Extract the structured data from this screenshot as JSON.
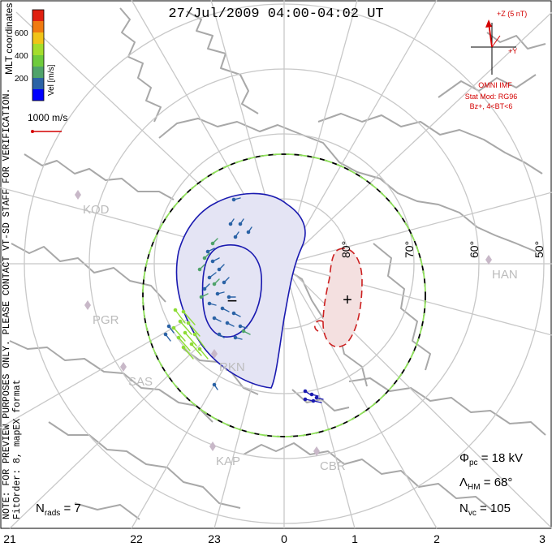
{
  "title": "27/Jul/2009 04:00-04:02 UT",
  "coordinates_label": "MLT coordinates",
  "note_line1": "NOTE: FOR PREVIEW PURPOSES ONLY. PLEASE CONTACT VT-SD STAFF FOR VERIFICATION.",
  "note_line2": "FitOrder: 8, mapEX format",
  "colorbar": {
    "label": "Vel [m/s]",
    "ticks": [
      "600",
      "400",
      "200"
    ],
    "colors": [
      "#0000ff",
      "#2b63a6",
      "#4fa36a",
      "#6ecb3c",
      "#a4dd2c",
      "#f0c418",
      "#f07a10",
      "#e02010"
    ]
  },
  "scale_vector_label": "1000 m/s",
  "latitude_labels": [
    "80°",
    "70°",
    "60°",
    "50°"
  ],
  "radars": [
    "KOD",
    "PGR",
    "SAS",
    "RKN",
    "KAP",
    "CBR",
    "HAN"
  ],
  "mlt_ticks": [
    "21",
    "22",
    "23",
    "0",
    "1",
    "2",
    "3"
  ],
  "imf": {
    "z_label": "+Z (5 nT)",
    "y_label": "+Y",
    "source": "OMNI IMF",
    "stat_mod": "Stat Mod: RG96",
    "condition": "Bz+, 4<BT<6"
  },
  "stats": {
    "phi_label": "Φ",
    "phi_sub": "pc",
    "phi_value": " = 18 kV",
    "lambda_label": "Λ",
    "lambda_sub": "HM",
    "lambda_value": " = 68°",
    "nvc_label": "N",
    "nvc_sub": "vc",
    "nvc_value": " = 105",
    "nrads_label": "N",
    "nrads_sub": "rads",
    "nrads_value": " = 7"
  },
  "cells": {
    "negative_marker": "−",
    "positive_marker": "+"
  },
  "colors": {
    "grid": "#c8c8c8",
    "coast": "#a8a8a8",
    "neg_fill": "#e4e4f4",
    "neg_line": "#1a1ab0",
    "pos_fill": "#f4e0e0",
    "pos_line": "#cc2020",
    "hmb_dash": "#8fe05a"
  }
}
